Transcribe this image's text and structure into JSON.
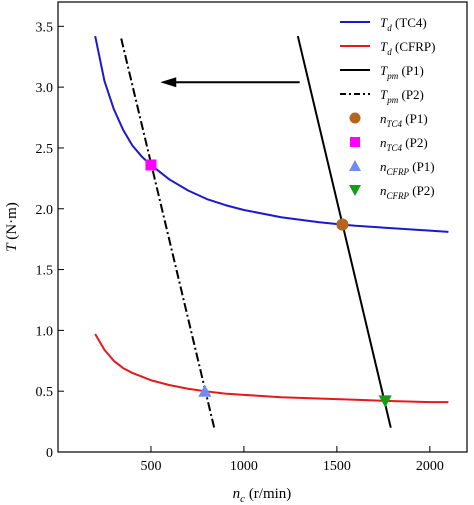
{
  "chart_data": {
    "type": "line",
    "xlabel_parts": [
      {
        "text": "n",
        "italic": true
      },
      {
        "text": "c",
        "italic": true,
        "sub": true
      },
      {
        "text": " (r/min)"
      }
    ],
    "ylabel_parts": [
      {
        "text": "T",
        "italic": true
      },
      {
        "text": " (N·m)"
      }
    ],
    "xlim": [
      0,
      2200
    ],
    "ylim": [
      0,
      3.7
    ],
    "xticks": [
      500,
      1000,
      1500,
      2000
    ],
    "yticks": [
      0,
      0.5,
      1.0,
      1.5,
      2.0,
      2.5,
      3.0,
      3.5
    ],
    "xtick_labels": [
      "500",
      "1000",
      "1500",
      "2000"
    ],
    "ytick_labels": [
      "0",
      "0.5",
      "1.0",
      "1.5",
      "2.0",
      "2.5",
      "3.0",
      "3.5"
    ],
    "grid": false,
    "legend_position": "top-right",
    "series": [
      {
        "key": "td-tc4",
        "kind": "line",
        "color": "#1a1acc",
        "dash": "solid",
        "label_parts": [
          {
            "text": "T",
            "italic": true
          },
          {
            "text": "d",
            "italic": true,
            "sub": true
          },
          {
            "text": " (TC4)"
          }
        ],
        "x": [
          200,
          250,
          300,
          350,
          400,
          450,
          500,
          600,
          700,
          800,
          900,
          1000,
          1200,
          1400,
          1530,
          1600,
          1800,
          2000,
          2100
        ],
        "y": [
          3.42,
          3.05,
          2.82,
          2.65,
          2.52,
          2.43,
          2.36,
          2.24,
          2.15,
          2.08,
          2.03,
          1.99,
          1.93,
          1.89,
          1.87,
          1.86,
          1.84,
          1.82,
          1.81
        ]
      },
      {
        "key": "td-cfrp",
        "kind": "line",
        "color": "#e31a1c",
        "dash": "solid",
        "label_parts": [
          {
            "text": "T",
            "italic": true
          },
          {
            "text": "d",
            "italic": true,
            "sub": true
          },
          {
            "text": " (CFRP)"
          }
        ],
        "x": [
          200,
          250,
          300,
          350,
          400,
          500,
          600,
          700,
          790,
          900,
          1000,
          1200,
          1400,
          1600,
          1760,
          2000,
          2100
        ],
        "y": [
          0.97,
          0.84,
          0.75,
          0.69,
          0.65,
          0.59,
          0.55,
          0.52,
          0.5,
          0.48,
          0.47,
          0.45,
          0.44,
          0.43,
          0.42,
          0.41,
          0.41
        ]
      },
      {
        "key": "tpm-p1",
        "kind": "line",
        "color": "#000000",
        "dash": "solid",
        "label_parts": [
          {
            "text": "T",
            "italic": true
          },
          {
            "text": "pm",
            "italic": true,
            "sub": true
          },
          {
            "text": " (P1)"
          }
        ],
        "x": [
          1290,
          1790
        ],
        "y": [
          3.42,
          0.2
        ]
      },
      {
        "key": "tpm-p2",
        "kind": "line",
        "color": "#000000",
        "dash": "dashdot",
        "label_parts": [
          {
            "text": "T",
            "italic": true
          },
          {
            "text": "pm",
            "italic": true,
            "sub": true
          },
          {
            "text": " (P2)"
          }
        ],
        "x": [
          340,
          840
        ],
        "y": [
          3.4,
          0.2
        ]
      },
      {
        "key": "n-tc4-p1",
        "kind": "marker",
        "marker": "circle",
        "color": "#b5651d",
        "label_parts": [
          {
            "text": "n",
            "italic": true
          },
          {
            "text": "TC4",
            "italic": true,
            "sub": true
          },
          {
            "text": " (P1)"
          }
        ],
        "x": [
          1530
        ],
        "y": [
          1.87
        ]
      },
      {
        "key": "n-tc4-p2",
        "kind": "marker",
        "marker": "square",
        "color": "#ff00ff",
        "label_parts": [
          {
            "text": "n",
            "italic": true
          },
          {
            "text": "TC4",
            "italic": true,
            "sub": true
          },
          {
            "text": " (P2)"
          }
        ],
        "x": [
          500
        ],
        "y": [
          2.36
        ]
      },
      {
        "key": "n-cfrp-p1",
        "kind": "marker",
        "marker": "triangle-up",
        "color": "#6f8cf2",
        "label_parts": [
          {
            "text": "n",
            "italic": true
          },
          {
            "text": "CFRP",
            "italic": true,
            "sub": true
          },
          {
            "text": " (P1)"
          }
        ],
        "x": [
          790
        ],
        "y": [
          0.5
        ]
      },
      {
        "key": "n-cfrp-p2",
        "kind": "marker",
        "marker": "triangle-down",
        "color": "#1a9a1a",
        "label_parts": [
          {
            "text": "n",
            "italic": true
          },
          {
            "text": "CFRP",
            "italic": true,
            "sub": true
          },
          {
            "text": " (P2)"
          }
        ],
        "x": [
          1760
        ],
        "y": [
          0.42
        ]
      }
    ],
    "annotations": [
      {
        "type": "arrow",
        "direction": "left",
        "from": [
          1300,
          3.04
        ],
        "to": [
          550,
          3.04
        ],
        "color": "#000000"
      }
    ]
  }
}
